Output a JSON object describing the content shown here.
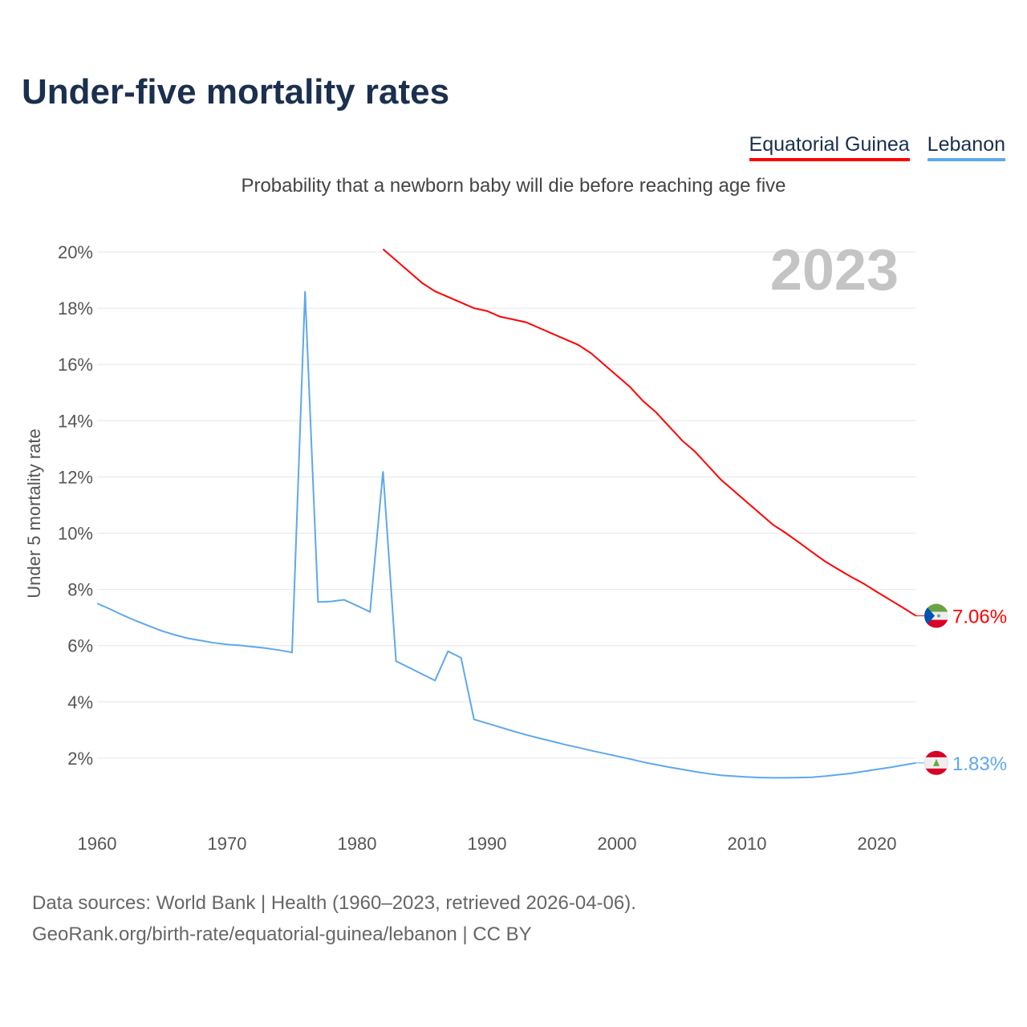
{
  "title": "Under-five mortality rates",
  "subtitle": "Probability that a newborn baby will die before reaching age five",
  "footer": {
    "line1": "Data sources: World Bank | Health (1960–2023, retrieved 2026-04-06).",
    "line2": "GeoRank.org/birth-rate/equatorial-guinea/lebanon | CC BY"
  },
  "chart_data": {
    "type": "line",
    "title": "Under-five mortality rates",
    "ylabel": "Under 5 mortality rate",
    "xlabel": "",
    "year_label": "2023",
    "ylim": [
      0,
      20
    ],
    "xlim": [
      1960,
      2023
    ],
    "yticks": [
      2,
      4,
      6,
      8,
      10,
      12,
      14,
      16,
      18,
      20
    ],
    "ytick_labels": [
      "2%",
      "4%",
      "6%",
      "8%",
      "10%",
      "12%",
      "14%",
      "16%",
      "18%",
      "20%"
    ],
    "xticks": [
      1960,
      1970,
      1980,
      1990,
      2000,
      2010,
      2020
    ],
    "xtick_labels": [
      "1960",
      "1970",
      "1980",
      "1990",
      "2000",
      "2010",
      "2020"
    ],
    "grid": true,
    "legend_placement": "top-right",
    "series": [
      {
        "name": "Equatorial Guinea",
        "color": "#ff0000",
        "end_label": "7.06%",
        "points": [
          [
            1982,
            20.1
          ],
          [
            1983,
            19.7
          ],
          [
            1984,
            19.3
          ],
          [
            1985,
            18.9
          ],
          [
            1986,
            18.6
          ],
          [
            1987,
            18.4
          ],
          [
            1988,
            18.2
          ],
          [
            1989,
            18.0
          ],
          [
            1990,
            17.9
          ],
          [
            1991,
            17.7
          ],
          [
            1992,
            17.6
          ],
          [
            1993,
            17.5
          ],
          [
            1994,
            17.3
          ],
          [
            1995,
            17.1
          ],
          [
            1996,
            16.9
          ],
          [
            1997,
            16.7
          ],
          [
            1998,
            16.4
          ],
          [
            1999,
            16.0
          ],
          [
            2000,
            15.6
          ],
          [
            2001,
            15.2
          ],
          [
            2002,
            14.7
          ],
          [
            2003,
            14.3
          ],
          [
            2004,
            13.8
          ],
          [
            2005,
            13.3
          ],
          [
            2006,
            12.9
          ],
          [
            2007,
            12.4
          ],
          [
            2008,
            11.9
          ],
          [
            2009,
            11.5
          ],
          [
            2010,
            11.1
          ],
          [
            2011,
            10.7
          ],
          [
            2012,
            10.3
          ],
          [
            2013,
            10.0
          ],
          [
            2014,
            9.67
          ],
          [
            2015,
            9.33
          ],
          [
            2016,
            9.0
          ],
          [
            2017,
            8.72
          ],
          [
            2018,
            8.45
          ],
          [
            2019,
            8.2
          ],
          [
            2020,
            7.91
          ],
          [
            2021,
            7.63
          ],
          [
            2022,
            7.35
          ],
          [
            2023,
            7.06
          ]
        ]
      },
      {
        "name": "Lebanon",
        "color": "#5ea8ec",
        "end_label": "1.83%",
        "points": [
          [
            1960,
            7.5
          ],
          [
            1961,
            7.3
          ],
          [
            1962,
            7.08
          ],
          [
            1963,
            6.88
          ],
          [
            1964,
            6.7
          ],
          [
            1965,
            6.52
          ],
          [
            1966,
            6.38
          ],
          [
            1967,
            6.26
          ],
          [
            1968,
            6.18
          ],
          [
            1969,
            6.1
          ],
          [
            1970,
            6.04
          ],
          [
            1971,
            6.01
          ],
          [
            1972,
            5.96
          ],
          [
            1973,
            5.91
          ],
          [
            1974,
            5.84
          ],
          [
            1975,
            5.76
          ],
          [
            1976,
            18.6
          ],
          [
            1977,
            7.55
          ],
          [
            1978,
            7.57
          ],
          [
            1979,
            7.63
          ],
          [
            1980,
            7.42
          ],
          [
            1981,
            7.2
          ],
          [
            1982,
            12.2
          ],
          [
            1983,
            5.45
          ],
          [
            1984,
            5.22
          ],
          [
            1985,
            4.99
          ],
          [
            1986,
            4.76
          ],
          [
            1987,
            5.8
          ],
          [
            1988,
            5.57
          ],
          [
            1989,
            3.38
          ],
          [
            1990,
            3.24
          ],
          [
            1991,
            3.1
          ],
          [
            1992,
            2.96
          ],
          [
            1993,
            2.83
          ],
          [
            1994,
            2.71
          ],
          [
            1995,
            2.6
          ],
          [
            1996,
            2.48
          ],
          [
            1997,
            2.38
          ],
          [
            1998,
            2.27
          ],
          [
            1999,
            2.17
          ],
          [
            2000,
            2.07
          ],
          [
            2001,
            1.97
          ],
          [
            2002,
            1.86
          ],
          [
            2003,
            1.77
          ],
          [
            2004,
            1.68
          ],
          [
            2005,
            1.6
          ],
          [
            2006,
            1.52
          ],
          [
            2007,
            1.45
          ],
          [
            2008,
            1.39
          ],
          [
            2009,
            1.36
          ],
          [
            2010,
            1.33
          ],
          [
            2011,
            1.31
          ],
          [
            2012,
            1.3
          ],
          [
            2013,
            1.3
          ],
          [
            2014,
            1.31
          ],
          [
            2015,
            1.32
          ],
          [
            2016,
            1.36
          ],
          [
            2017,
            1.41
          ],
          [
            2018,
            1.46
          ],
          [
            2019,
            1.53
          ],
          [
            2020,
            1.6
          ],
          [
            2021,
            1.67
          ],
          [
            2022,
            1.75
          ],
          [
            2023,
            1.83
          ]
        ]
      }
    ]
  }
}
